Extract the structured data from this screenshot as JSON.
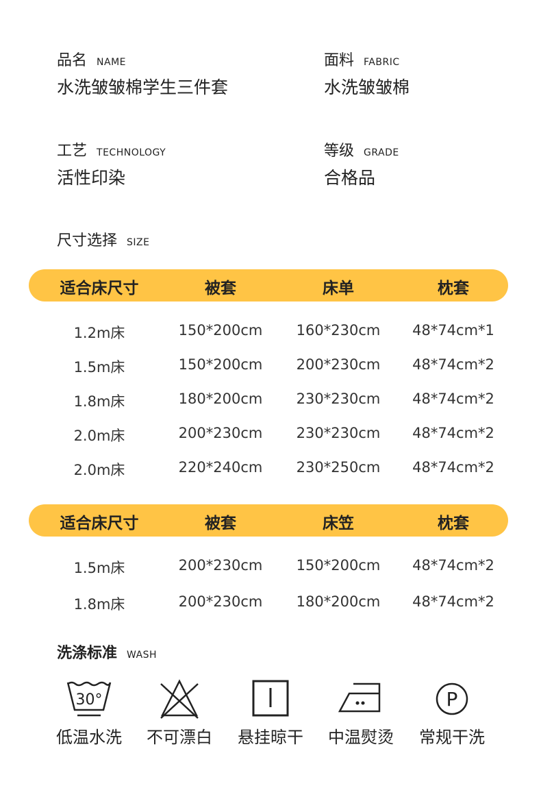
{
  "info": [
    {
      "label": "品名",
      "label_en": "NAME",
      "value": "水洗皱皱棉学生三件套"
    },
    {
      "label": "面料",
      "label_en": "FABRIC",
      "value": "水洗皱皱棉"
    },
    {
      "label": "工艺",
      "label_en": "TECHNOLOGY",
      "value": "活性印染"
    },
    {
      "label": "等级",
      "label_en": "GRADE",
      "value": "合格品"
    }
  ],
  "size": {
    "label": "尺寸选择",
    "label_en": "SIZE"
  },
  "accent": "#FFC445",
  "table1": {
    "headers": [
      "适合床尺寸",
      "被套",
      "床单",
      "枕套"
    ],
    "rows": [
      [
        "1.2m床",
        "150*200cm",
        "160*230cm",
        "48*74cm*1"
      ],
      [
        "1.5m床",
        "150*200cm",
        "200*230cm",
        "48*74cm*2"
      ],
      [
        "1.8m床",
        "180*200cm",
        "230*230cm",
        "48*74cm*2"
      ],
      [
        "2.0m床",
        "200*230cm",
        "230*230cm",
        "48*74cm*2"
      ],
      [
        "2.0m床",
        "220*240cm",
        "230*250cm",
        "48*74cm*2"
      ]
    ]
  },
  "table2": {
    "headers": [
      "适合床尺寸",
      "被套",
      "床笠",
      "枕套"
    ],
    "rows": [
      [
        "1.5m床",
        "200*230cm",
        "150*200cm",
        "48*74cm*2"
      ],
      [
        "1.8m床",
        "200*230cm",
        "180*200cm",
        "48*74cm*2"
      ]
    ]
  },
  "wash": {
    "label": "洗涤标准",
    "label_en": "WASH",
    "items": [
      {
        "icon": "wash-30-icon",
        "label": "低温水洗",
        "temp": "30°"
      },
      {
        "icon": "no-bleach-icon",
        "label": "不可漂白"
      },
      {
        "icon": "hang-dry-icon",
        "label": "悬挂晾干"
      },
      {
        "icon": "iron-medium-icon",
        "label": "中温熨烫"
      },
      {
        "icon": "dry-clean-p-icon",
        "label": "常规干洗",
        "letter": "P"
      }
    ]
  }
}
